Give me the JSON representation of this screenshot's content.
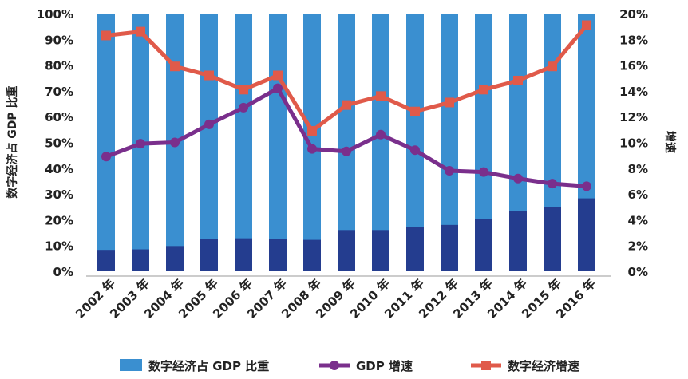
{
  "chart_data": {
    "type": "bar+line",
    "categories": [
      "2002 年",
      "2003 年",
      "2004 年",
      "2005 年",
      "2006 年",
      "2007 年",
      "2008 年",
      "2009 年",
      "2010 年",
      "2011 年",
      "2012 年",
      "2013 年",
      "2014 年",
      "2015 年",
      "2016 年"
    ],
    "bar_series": {
      "name": "数字经济占 GDP 比重",
      "values": [
        8.3,
        8.5,
        9.8,
        12.4,
        12.8,
        12.4,
        12.2,
        16.0,
        16.0,
        17.2,
        18.0,
        20.2,
        23.3,
        25.0,
        28.3
      ],
      "remainder_total": 100,
      "color": "#3a8fd0",
      "dark_color": "#243d8f"
    },
    "line_series": [
      {
        "name": "GDP 增速",
        "values": [
          8.9,
          9.9,
          10.0,
          11.4,
          12.7,
          14.2,
          9.5,
          9.3,
          10.6,
          9.4,
          7.8,
          7.7,
          7.2,
          6.8,
          6.6
        ],
        "color": "#7a2f8c",
        "marker": "circle"
      },
      {
        "name": "数字经济增速",
        "values": [
          18.3,
          18.6,
          15.9,
          15.2,
          14.1,
          15.2,
          10.9,
          12.9,
          13.6,
          12.4,
          13.1,
          14.1,
          14.8,
          15.9,
          19.1
        ],
        "color": "#e05a4a",
        "marker": "square"
      }
    ],
    "left_axis": {
      "label": "数字经济占 GDP 比重",
      "ticks": [
        "0%",
        "10%",
        "20%",
        "30%",
        "40%",
        "50%",
        "60%",
        "70%",
        "80%",
        "90%",
        "100%"
      ],
      "ylim": [
        0,
        100
      ]
    },
    "right_axis": {
      "label": "增速",
      "ticks": [
        "0%",
        "2%",
        "4%",
        "6%",
        "8%",
        "10%",
        "12%",
        "14%",
        "16%",
        "18%",
        "20%"
      ],
      "ylim": [
        0,
        20
      ]
    },
    "legend": [
      {
        "label": "数字经济占 GDP 比重",
        "color": "#3a8fd0",
        "kind": "bar"
      },
      {
        "label": "GDP 增速",
        "color": "#7a2f8c",
        "kind": "line-circle"
      },
      {
        "label": "数字经济增速",
        "color": "#e05a4a",
        "kind": "line-square"
      }
    ],
    "legend_position": "bottom"
  }
}
